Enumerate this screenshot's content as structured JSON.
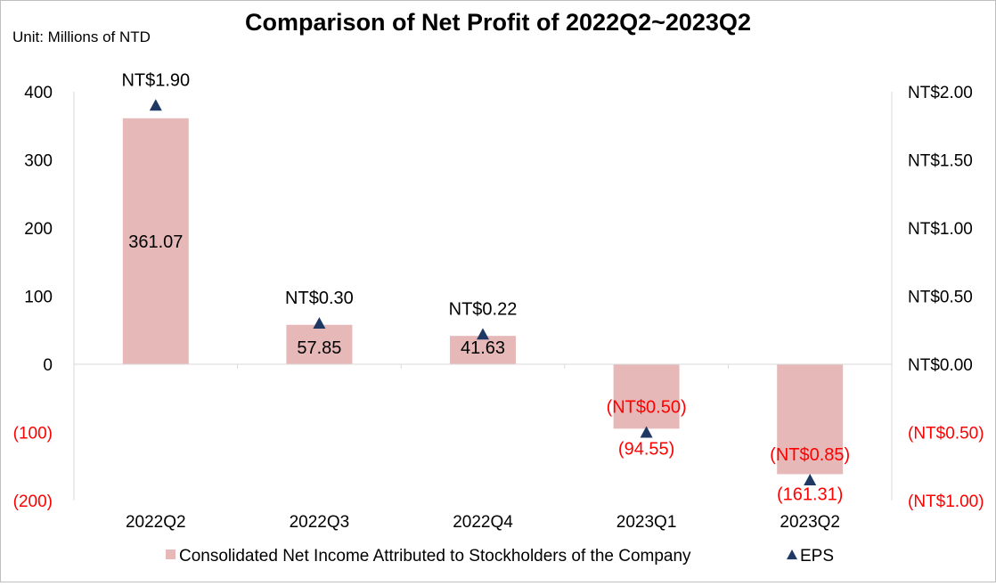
{
  "chart_data": {
    "type": "bar",
    "title": "Comparison of Net Profit of 2022Q2~2023Q2",
    "unit_label": "Unit: Millions of NTD",
    "categories": [
      "2022Q2",
      "2022Q3",
      "2022Q4",
      "2023Q1",
      "2023Q2"
    ],
    "series": [
      {
        "name": "Consolidated Net Income Attributed to Stockholders of the Company",
        "type": "bar",
        "axis": "left",
        "values": [
          361.07,
          57.85,
          41.63,
          -94.55,
          -161.31
        ],
        "labels": [
          "361.07",
          "57.85",
          "41.63",
          "(94.55)",
          "(161.31)"
        ],
        "color": "#e6b9b8"
      },
      {
        "name": "EPS",
        "type": "scatter",
        "marker": "triangle",
        "axis": "right",
        "values": [
          1.9,
          0.3,
          0.22,
          -0.5,
          -0.85
        ],
        "labels": [
          "NT$1.90",
          "NT$0.30",
          "NT$0.22",
          "(NT$0.50)",
          "(NT$0.85)"
        ],
        "color": "#1f3864"
      }
    ],
    "y_left": {
      "ylim": [
        -200,
        400
      ],
      "ticks": [
        400,
        300,
        200,
        100,
        0,
        -100,
        -200
      ],
      "tick_labels": [
        "400",
        "300",
        "200",
        "100",
        "0",
        "(100)",
        "(200)"
      ]
    },
    "y_right": {
      "ylim": [
        -1.0,
        2.0
      ],
      "ticks": [
        2.0,
        1.5,
        1.0,
        0.5,
        0.0,
        -0.5,
        -1.0
      ],
      "tick_labels": [
        "NT$2.00",
        "NT$1.50",
        "NT$1.00",
        "NT$0.50",
        "NT$0.00",
        "(NT$0.50)",
        "(NT$1.00)"
      ]
    },
    "negative_color": "#ff0000",
    "grid": false,
    "legend": "bottom"
  }
}
